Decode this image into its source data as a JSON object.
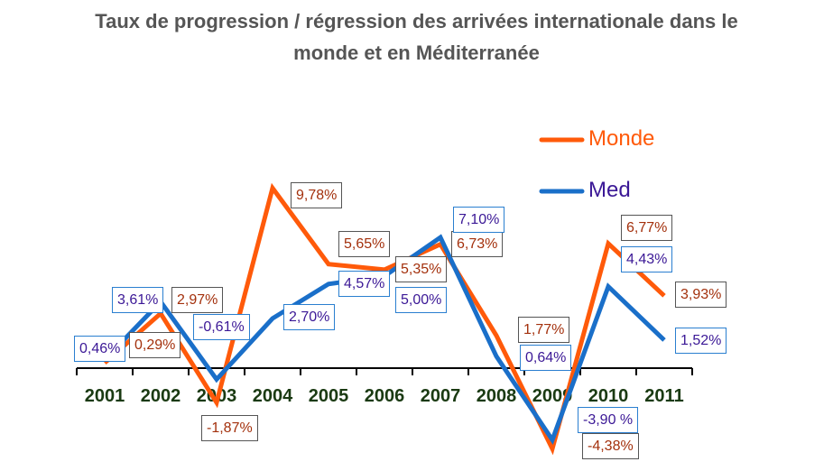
{
  "chart_data": {
    "type": "line",
    "title": "Taux de progression / régression des arrivées internationale dans le monde et en Méditerranée",
    "title_lines": [
      "Taux de progression / régression des arrivées internationale dans le",
      "monde et en Méditerranée"
    ],
    "categories": [
      "2001",
      "2002",
      "2003",
      "2004",
      "2005",
      "2006",
      "2007",
      "2008",
      "2009",
      "2010",
      "2011"
    ],
    "series": [
      {
        "name": "Monde",
        "color": "#ff5a0a",
        "values": [
          0.29,
          2.97,
          -1.87,
          9.78,
          5.65,
          5.35,
          6.73,
          1.77,
          -4.38,
          6.77,
          3.93
        ],
        "labels": [
          "0,29%",
          "2,97%",
          "-1,87%",
          "9,78%",
          "5,65%",
          "5,35%",
          "6,73%",
          "1,77%",
          "-4,38%",
          "6,77%",
          "3,93%"
        ]
      },
      {
        "name": "Med",
        "color": "#1a6fc9",
        "values": [
          0.46,
          3.61,
          -0.61,
          2.7,
          4.57,
          5.0,
          7.1,
          0.64,
          -3.9,
          4.43,
          1.52
        ],
        "labels": [
          "0,46%",
          "3,61%",
          "-0,61%",
          "2,70%",
          "4,57%",
          "5,00%",
          "7,10%",
          "0,64%",
          "-3,90 %",
          "4,43%",
          "1,52%"
        ]
      }
    ],
    "legend_position": "top-right",
    "grid": false
  }
}
